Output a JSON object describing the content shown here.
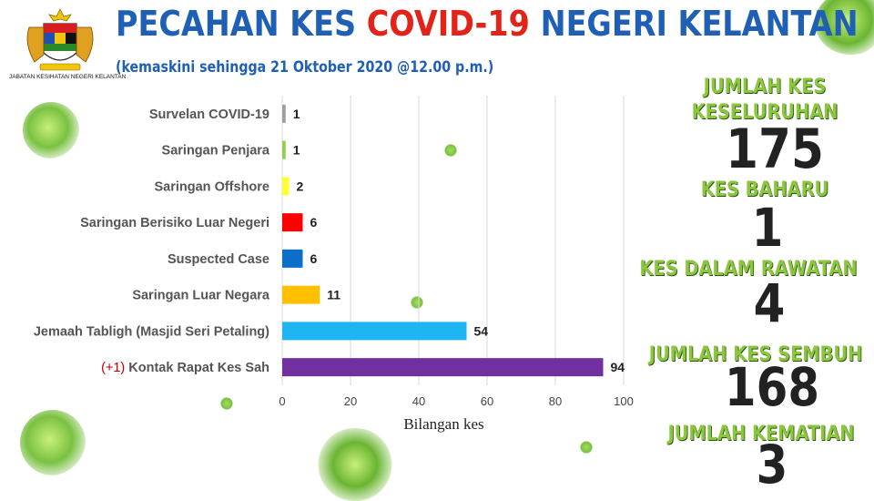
{
  "header": {
    "title_part1": "PECAHAN KES ",
    "title_part2": "COVID-19",
    "title_part3": " NEGERI KELANTAN",
    "subtitle": "(kemaskini sehingga 21 Oktober 2020 @12.00 p.m.)",
    "logo_caption": "JABATAN KESIHATAN NEGERI KELANTAN"
  },
  "colors": {
    "title_blue": "#1f5fb4",
    "title_red": "#e32218",
    "stat_green": "#8cc63e",
    "virus_green": "#7ac142"
  },
  "chart_data": {
    "type": "bar",
    "orientation": "horizontal",
    "categories": [
      "Survelan COVID-19",
      "Saringan Penjara",
      "Saringan Offshore",
      "Saringan Berisiko Luar Negeri",
      "Suspected Case",
      "Saringan Luar Negara",
      "Jemaah Tabligh (Masjid Seri Petaling)",
      "Kontak Rapat Kes Sah"
    ],
    "category_prefix": [
      "",
      "",
      "",
      "",
      "",
      "",
      "",
      "(+1)"
    ],
    "values": [
      1,
      1,
      2,
      6,
      6,
      11,
      54,
      94
    ],
    "bar_colors": [
      "#9e9e9e",
      "#8fd14f",
      "#ffff33",
      "#ff0000",
      "#0b6fc9",
      "#ffc000",
      "#1fb4f2",
      "#7030a0"
    ],
    "xlabel": "Bilangan kes",
    "xlim": [
      0,
      100
    ],
    "xticks": [
      0,
      20,
      40,
      60,
      80,
      100
    ],
    "grid": true
  },
  "stats": {
    "total_label_1": "JUMLAH KES",
    "total_label_2": "KESELURUHAN",
    "total_value": "175",
    "new_label": "KES BAHARU",
    "new_value": "1",
    "active_label": "KES DALAM RAWATAN",
    "active_value": "4",
    "recovered_label": "JUMLAH KES SEMBUH",
    "recovered_value": "168",
    "deaths_label": "JUMLAH KEMATIAN",
    "deaths_value": "3"
  }
}
